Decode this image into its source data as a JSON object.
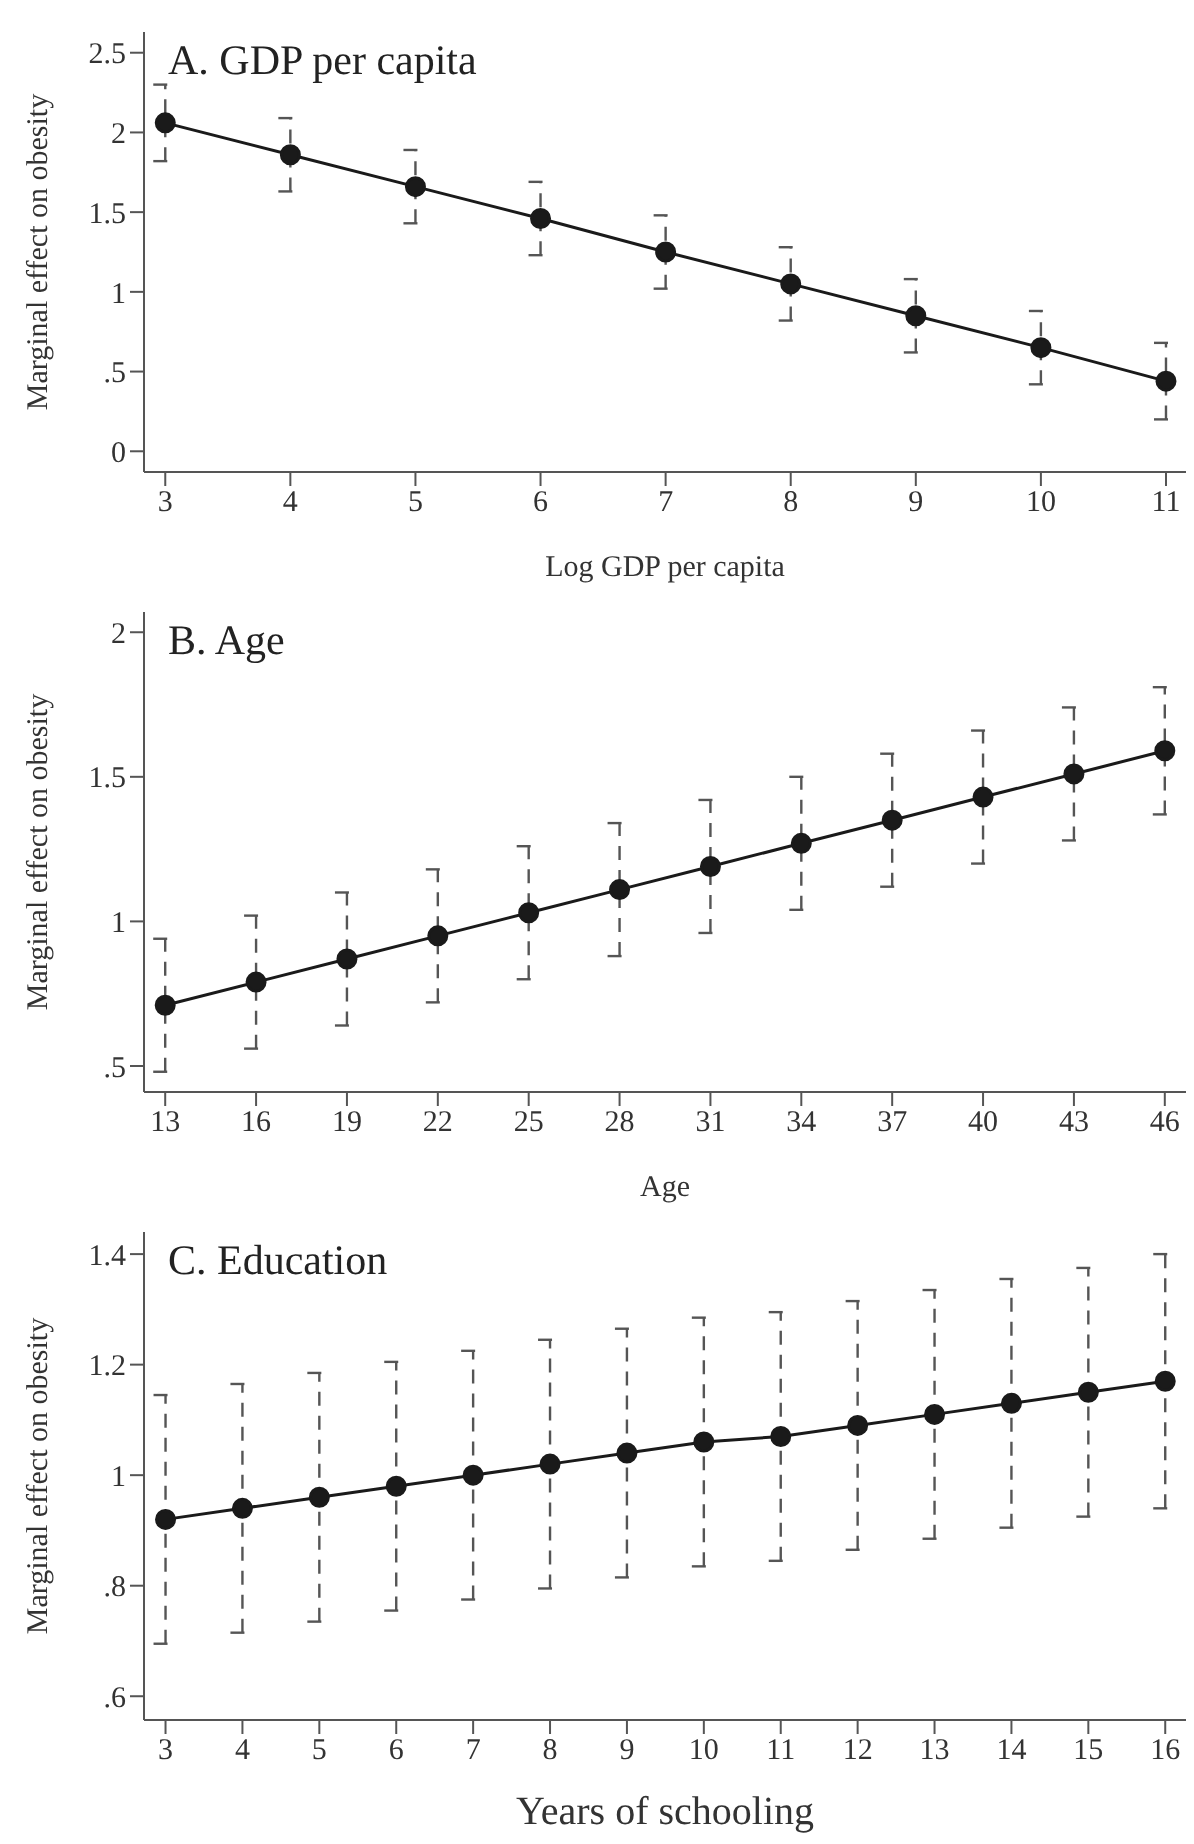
{
  "chart_data": [
    {
      "type": "line",
      "title": "A. GDP per capita",
      "xlabel": "Log GDP per capita",
      "ylabel": "Marginal effect on obesity",
      "x": [
        3,
        4,
        5,
        6,
        7,
        8,
        9,
        10,
        11
      ],
      "series": [
        {
          "color": "#1a1a1a",
          "values": [
            2.06,
            1.86,
            1.66,
            1.46,
            1.25,
            1.05,
            0.85,
            0.65,
            0.44
          ],
          "errors": [
            0.24,
            0.23,
            0.23,
            0.23,
            0.23,
            0.23,
            0.23,
            0.23,
            0.24
          ]
        }
      ],
      "xlim": [
        2.83,
        11.16
      ],
      "xticks": [
        3,
        4,
        5,
        6,
        7,
        8,
        9,
        10,
        11
      ],
      "ylim": [
        -0.13,
        2.63
      ],
      "yticks": [
        0,
        {
          "value": 0.5,
          "label": ".5"
        },
        1,
        1.5,
        2,
        2.5
      ],
      "grid": false,
      "legend": false,
      "marker": "circle",
      "line_style": "solid"
    },
    {
      "type": "line",
      "title": "B. Age",
      "xlabel": "Age",
      "ylabel": "Marginal effect on obesity",
      "x": [
        13,
        16,
        19,
        22,
        25,
        28,
        31,
        34,
        37,
        40,
        43,
        46
      ],
      "series": [
        {
          "color": "#1a1a1a",
          "values": [
            0.71,
            0.79,
            0.87,
            0.95,
            1.03,
            1.11,
            1.19,
            1.27,
            1.35,
            1.43,
            1.51,
            1.59
          ],
          "errors": [
            0.23,
            0.23,
            0.23,
            0.23,
            0.23,
            0.23,
            0.23,
            0.23,
            0.23,
            0.23,
            0.23,
            0.22
          ]
        }
      ],
      "xlim": [
        12.3,
        46.7
      ],
      "xticks": [
        13,
        16,
        19,
        22,
        25,
        28,
        31,
        34,
        37,
        40,
        43,
        46
      ],
      "ylim": [
        0.41,
        2.07
      ],
      "yticks": [
        {
          "value": 0.5,
          "label": ".5"
        },
        1,
        1.5,
        2
      ],
      "grid": false,
      "legend": false,
      "marker": "circle",
      "line_style": "solid"
    },
    {
      "type": "line",
      "title": "C. Education",
      "xlabel": "Years of schooling",
      "ylabel": "Marginal effect on obesity",
      "x": [
        3,
        4,
        5,
        6,
        7,
        8,
        9,
        10,
        11,
        12,
        13,
        14,
        15,
        16
      ],
      "series": [
        {
          "color": "#1a1a1a",
          "values": [
            0.92,
            0.94,
            0.96,
            0.98,
            1.0,
            1.02,
            1.04,
            1.06,
            1.07,
            1.09,
            1.11,
            1.13,
            1.15,
            1.17
          ],
          "errors": [
            0.225,
            0.225,
            0.225,
            0.225,
            0.225,
            0.225,
            0.225,
            0.225,
            0.225,
            0.225,
            0.225,
            0.225,
            0.225,
            0.23
          ]
        }
      ],
      "xlim": [
        2.72,
        16.27
      ],
      "xticks": [
        3,
        4,
        5,
        6,
        7,
        8,
        9,
        10,
        11,
        12,
        13,
        14,
        15,
        16
      ],
      "ylim": [
        0.557,
        1.44
      ],
      "yticks": [
        {
          "value": 0.6,
          "label": ".6"
        },
        {
          "value": 0.8,
          "label": ".8"
        },
        1,
        1.2,
        1.4
      ],
      "grid": false,
      "legend": false,
      "marker": "circle",
      "line_style": "solid"
    }
  ]
}
